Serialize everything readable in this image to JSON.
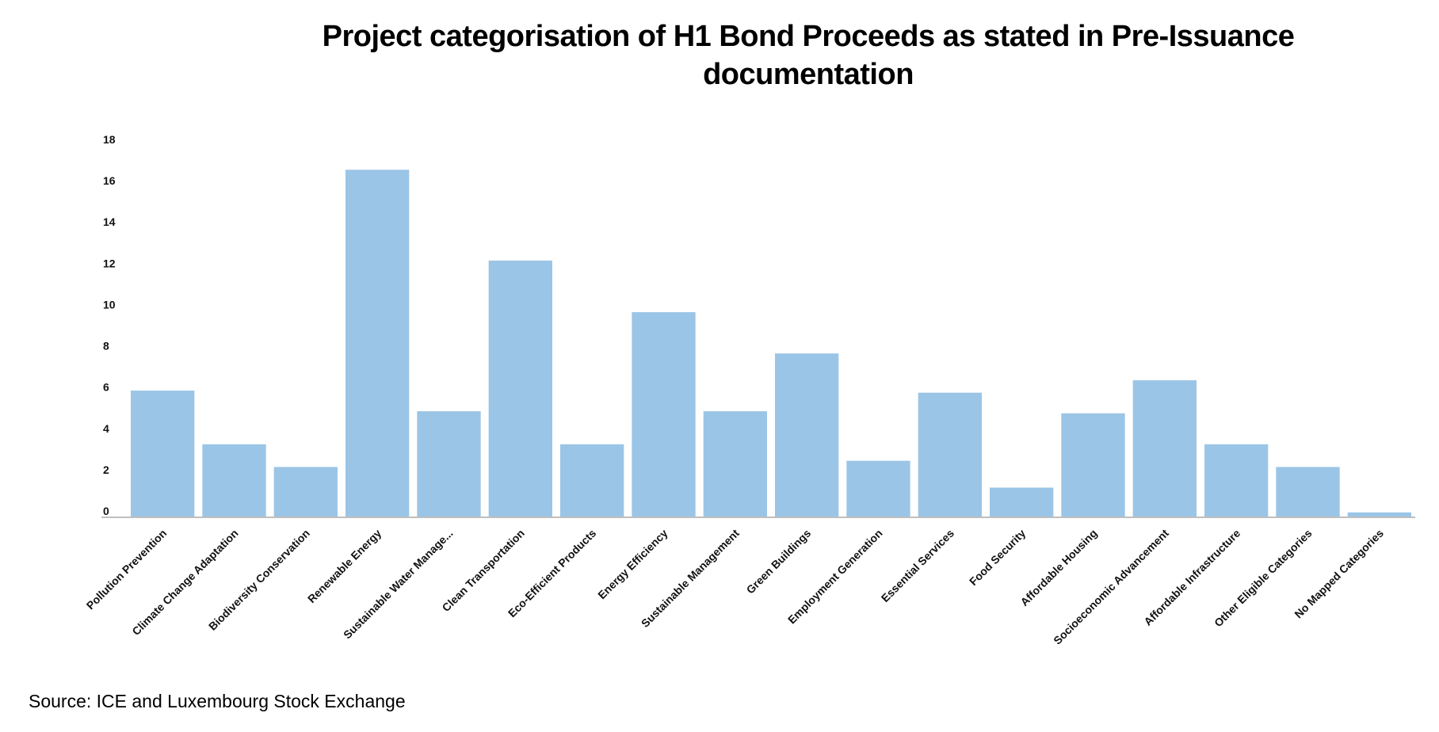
{
  "chart_data": {
    "type": "bar",
    "title": "Project categorisation of H1 Bond Proceeds as stated in Pre-Issuance documentation",
    "xlabel": "",
    "ylabel": "",
    "ylim": [
      0,
      18
    ],
    "yticks": [
      0,
      2,
      4,
      6,
      8,
      10,
      12,
      14,
      16,
      18
    ],
    "grid": false,
    "legend": "none",
    "bar_color": "#9bc5e6",
    "categories": [
      "Pollution Prevention",
      "Climate Change Adaptation",
      "Biodiversity Conservation",
      "Renewable Energy",
      "Sustainable Water Manage...",
      "Clean Transportation",
      "Eco-Efficient Products",
      "Energy Efficiency",
      "Sustainable Management",
      "Green Buildings",
      "Employment Generation",
      "Essential Services",
      "Food Security",
      "Affordable Housing",
      "Socioeconomic Advancement",
      "Affordable Infrastructure",
      "Other Eligible Categories",
      "No Mapped Categories"
    ],
    "values": [
      6.1,
      3.5,
      2.4,
      16.8,
      5.1,
      12.4,
      3.5,
      9.9,
      5.1,
      7.9,
      2.7,
      6.0,
      1.4,
      5.0,
      6.6,
      3.5,
      2.4,
      0.2
    ]
  },
  "source": "Source: ICE and Luxembourg Stock Exchange"
}
